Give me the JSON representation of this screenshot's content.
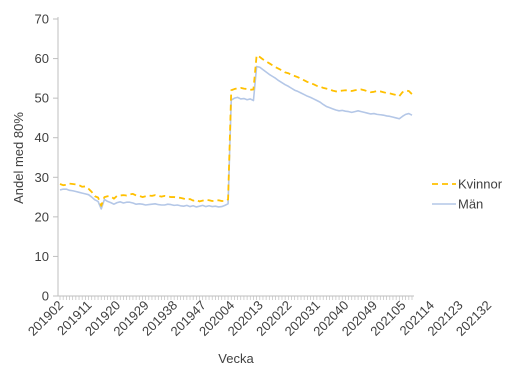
{
  "chart_data": {
    "type": "line",
    "title": "",
    "xlabel": "Vecka",
    "ylabel": "Andel med 80%",
    "ylim": [
      0,
      70
    ],
    "yticks": [
      0,
      10,
      20,
      30,
      40,
      50,
      60,
      70
    ],
    "grid": false,
    "legend_position": "right",
    "x_tick_labels": [
      "201902",
      "201911",
      "201920",
      "201929",
      "201938",
      "201947",
      "202004",
      "202013",
      "202022",
      "202031",
      "202040",
      "202049",
      "202105",
      "202114",
      "202123",
      "202132"
    ],
    "series": [
      {
        "name": "Kvinnor",
        "color": "#FFC000",
        "style": "dashed",
        "values": [
          28.3,
          28.0,
          28.1,
          28.4,
          28.3,
          28.2,
          28.0,
          27.6,
          27.7,
          27.1,
          26.3,
          25.2,
          24.9,
          22.8,
          25.0,
          25.2,
          25.2,
          24.6,
          25.3,
          25.4,
          25.5,
          25.4,
          25.7,
          25.8,
          25.4,
          25.3,
          25.0,
          25.2,
          25.4,
          25.3,
          25.5,
          25.3,
          25.1,
          25.3,
          25.2,
          25.0,
          25.0,
          24.9,
          24.8,
          24.6,
          24.3,
          24.5,
          24.1,
          24.3,
          23.9,
          24.1,
          24.3,
          24.2,
          24.0,
          24.1,
          24.2,
          24.0,
          24.0,
          24.4,
          52.0,
          52.3,
          52.5,
          52.6,
          52.4,
          52.3,
          52.1,
          52.2,
          60.8,
          60.4,
          59.8,
          59.3,
          58.8,
          58.3,
          57.8,
          57.4,
          57.0,
          56.5,
          56.3,
          55.9,
          55.6,
          55.3,
          54.9,
          54.5,
          54.1,
          53.8,
          53.5,
          53.1,
          52.9,
          52.6,
          52.4,
          52.2,
          51.9,
          51.7,
          51.8,
          51.9,
          52.0,
          51.9,
          51.8,
          52.0,
          52.1,
          52.2,
          52.0,
          51.7,
          51.5,
          51.6,
          51.8,
          51.7,
          51.5,
          51.3,
          51.2,
          51.0,
          50.8,
          50.5,
          51.5,
          51.9,
          51.8,
          51.0
        ]
      },
      {
        "name": "Män",
        "color": "#B4C7E7",
        "style": "solid",
        "values": [
          26.8,
          27.0,
          27.0,
          26.7,
          26.6,
          26.4,
          26.2,
          26.0,
          25.8,
          25.6,
          25.0,
          24.3,
          23.9,
          22.0,
          24.4,
          23.9,
          23.6,
          23.2,
          23.6,
          23.8,
          23.5,
          23.7,
          23.7,
          23.5,
          23.2,
          23.3,
          23.2,
          23.0,
          23.1,
          23.2,
          23.3,
          23.1,
          23.0,
          23.0,
          23.2,
          23.1,
          22.9,
          23.0,
          22.8,
          22.7,
          22.9,
          22.6,
          22.8,
          22.5,
          22.7,
          22.9,
          22.6,
          22.8,
          22.6,
          22.7,
          22.5,
          22.6,
          22.9,
          23.3,
          49.5,
          50.0,
          50.2,
          49.8,
          49.9,
          49.6,
          49.8,
          49.4,
          58.0,
          57.8,
          57.2,
          56.6,
          56.0,
          55.5,
          55.0,
          54.4,
          53.9,
          53.4,
          53.0,
          52.5,
          52.0,
          51.7,
          51.3,
          50.9,
          50.5,
          50.2,
          49.8,
          49.4,
          49.0,
          48.4,
          47.9,
          47.6,
          47.3,
          47.0,
          46.8,
          46.9,
          46.7,
          46.6,
          46.4,
          46.6,
          46.8,
          46.6,
          46.4,
          46.2,
          46.0,
          46.1,
          45.9,
          45.8,
          45.7,
          45.5,
          45.4,
          45.2,
          45.0,
          44.8,
          45.4,
          45.9,
          46.1,
          45.7
        ]
      }
    ]
  }
}
